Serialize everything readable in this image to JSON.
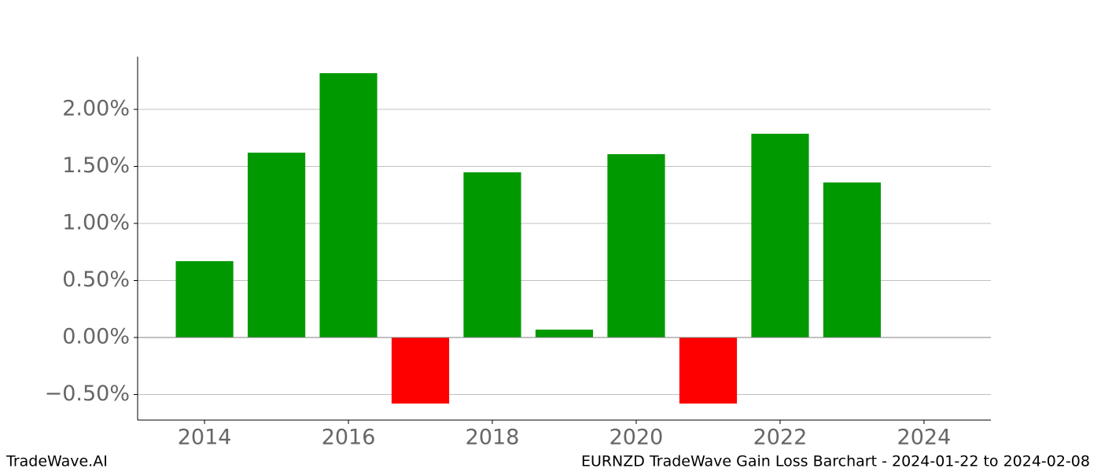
{
  "chart_data": {
    "type": "bar",
    "x": [
      2014,
      2015,
      2016,
      2017,
      2018,
      2019,
      2020,
      2021,
      2022,
      2023
    ],
    "values": [
      0.669,
      1.62,
      2.317,
      -0.579,
      1.448,
      0.069,
      1.607,
      -0.579,
      1.786,
      1.359
    ],
    "positive_color": "#009900",
    "negative_color": "#ff0000",
    "xlim": [
      2013.07,
      2024.93
    ],
    "xticks": [
      2014,
      2016,
      2018,
      2020,
      2022,
      2024
    ],
    "ylim": [
      -0.724,
      2.462
    ],
    "yticks": [
      {
        "value": -0.5,
        "label": "−0.50%"
      },
      {
        "value": 0,
        "label": "0.00%"
      },
      {
        "value": 0.5,
        "label": "0.50%"
      },
      {
        "value": 1,
        "label": "1.00%"
      },
      {
        "value": 1.5,
        "label": "1.50%"
      },
      {
        "value": 2,
        "label": "2.00%"
      }
    ],
    "grid": true,
    "footer_left": "TradeWave.AI",
    "footer_right": "EURNZD TradeWave Gain Loss Barchart - 2024-01-22 to 2024-02-08"
  }
}
